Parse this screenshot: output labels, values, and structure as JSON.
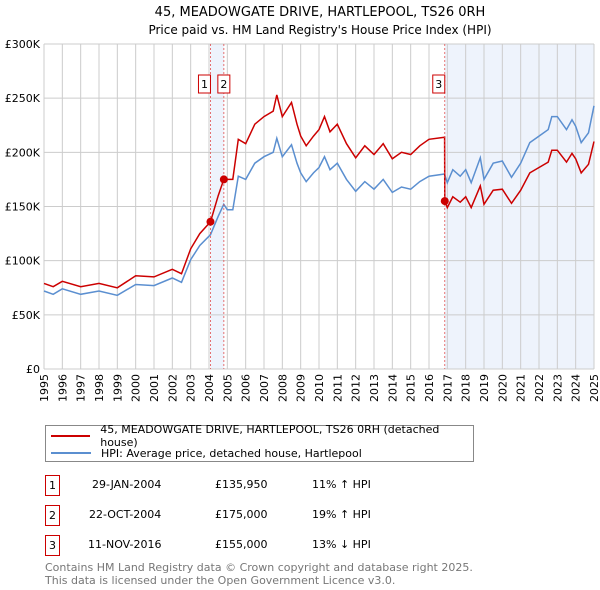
{
  "chart_data": {
    "type": "line",
    "title": "45, MEADOWGATE DRIVE, HARTLEPOOL, TS26 0RH",
    "subtitle": "Price paid vs. HM Land Registry's House Price Index (HPI)",
    "xlim": [
      1995,
      2025
    ],
    "ylim": [
      0,
      300000
    ],
    "y_ticks": [
      0,
      50000,
      100000,
      150000,
      200000,
      250000,
      300000
    ],
    "y_tick_labels": [
      "£0",
      "£50K",
      "£100K",
      "£150K",
      "£200K",
      "£250K",
      "£300K"
    ],
    "x_tick_labels": [
      "1995",
      "1996",
      "1997",
      "1998",
      "1999",
      "2000",
      "2001",
      "2002",
      "2003",
      "2004",
      "2005",
      "2006",
      "2007",
      "2008",
      "2009",
      "2010",
      "2011",
      "2012",
      "2013",
      "2014",
      "2015",
      "2016",
      "2017",
      "2018",
      "2019",
      "2020",
      "2021",
      "2022",
      "2023",
      "2024",
      "2025"
    ],
    "grid": true,
    "x": [
      1995,
      1995.5,
      1996,
      1997,
      1998,
      1999,
      2000,
      2001,
      2002,
      2002.5,
      2003,
      2003.5,
      2004.08,
      2004.5,
      2004.81,
      2005,
      2005.3,
      2005.6,
      2006,
      2006.5,
      2007,
      2007.5,
      2007.7,
      2008,
      2008.5,
      2008.8,
      2009,
      2009.3,
      2009.7,
      2010,
      2010.3,
      2010.6,
      2011,
      2011.5,
      2012,
      2012.5,
      2013,
      2013.5,
      2014,
      2014.5,
      2015,
      2015.5,
      2016,
      2016.85,
      2016.86,
      2017,
      2017.3,
      2017.7,
      2018,
      2018.3,
      2018.8,
      2019,
      2019.5,
      2020,
      2020.5,
      2021,
      2021.5,
      2022,
      2022.5,
      2022.7,
      2023,
      2023.5,
      2023.8,
      2024,
      2024.3,
      2024.7,
      2025
    ],
    "series": [
      {
        "name": "45, MEADOWGATE DRIVE, HARTLEPOOL, TS26 0RH (detached house)",
        "color": "#cc0000",
        "values": [
          79,
          76,
          81,
          76,
          79,
          75,
          86,
          85,
          92,
          88,
          111,
          125,
          136,
          160,
          175,
          175,
          175,
          212,
          208,
          226,
          233,
          238,
          253,
          233,
          246,
          226,
          215,
          206,
          215,
          221,
          233,
          219,
          226,
          208,
          195,
          206,
          198,
          208,
          194,
          200,
          198,
          206,
          212,
          214,
          155,
          149,
          159,
          154,
          159,
          149,
          169,
          152,
          165,
          166,
          153,
          165,
          181,
          186,
          191,
          202,
          202,
          191,
          199,
          194,
          181,
          189,
          210
        ]
      },
      {
        "name": "HPI: Average price, detached house, Hartlepool",
        "color": "#5b8fd0",
        "values": [
          72,
          69,
          74,
          69,
          72,
          68,
          78,
          77,
          84,
          80,
          101,
          114,
          124,
          141,
          152,
          147,
          147,
          178,
          175,
          190,
          196,
          200,
          213,
          196,
          207,
          190,
          181,
          173,
          181,
          186,
          196,
          184,
          190,
          175,
          164,
          173,
          166,
          175,
          163,
          168,
          166,
          173,
          178,
          180,
          179,
          172,
          184,
          178,
          184,
          172,
          195,
          175,
          190,
          192,
          177,
          190,
          209,
          215,
          221,
          233,
          233,
          221,
          230,
          224,
          209,
          218,
          243
        ]
      }
    ],
    "value_unit": "thousand GBP",
    "shaded_ranges": [
      [
        2004.08,
        2004.81
      ],
      [
        2016.86,
        2025
      ]
    ],
    "sales": [
      {
        "label": "1",
        "x": 2004.08,
        "value": 135950,
        "date": "29-JAN-2004",
        "price": "£135,950",
        "hpi": "11% ↑ HPI"
      },
      {
        "label": "2",
        "x": 2004.81,
        "value": 175000,
        "date": "22-OCT-2004",
        "price": "£175,000",
        "hpi": "19% ↑ HPI"
      },
      {
        "label": "3",
        "x": 2016.86,
        "value": 155000,
        "date": "11-NOV-2016",
        "price": "£155,000",
        "hpi": "13% ↓ HPI"
      }
    ],
    "legend_position": "below"
  },
  "footer": {
    "line1": "Contains HM Land Registry data © Crown copyright and database right 2025.",
    "line2": "This data is licensed under the Open Government Licence v3.0."
  }
}
